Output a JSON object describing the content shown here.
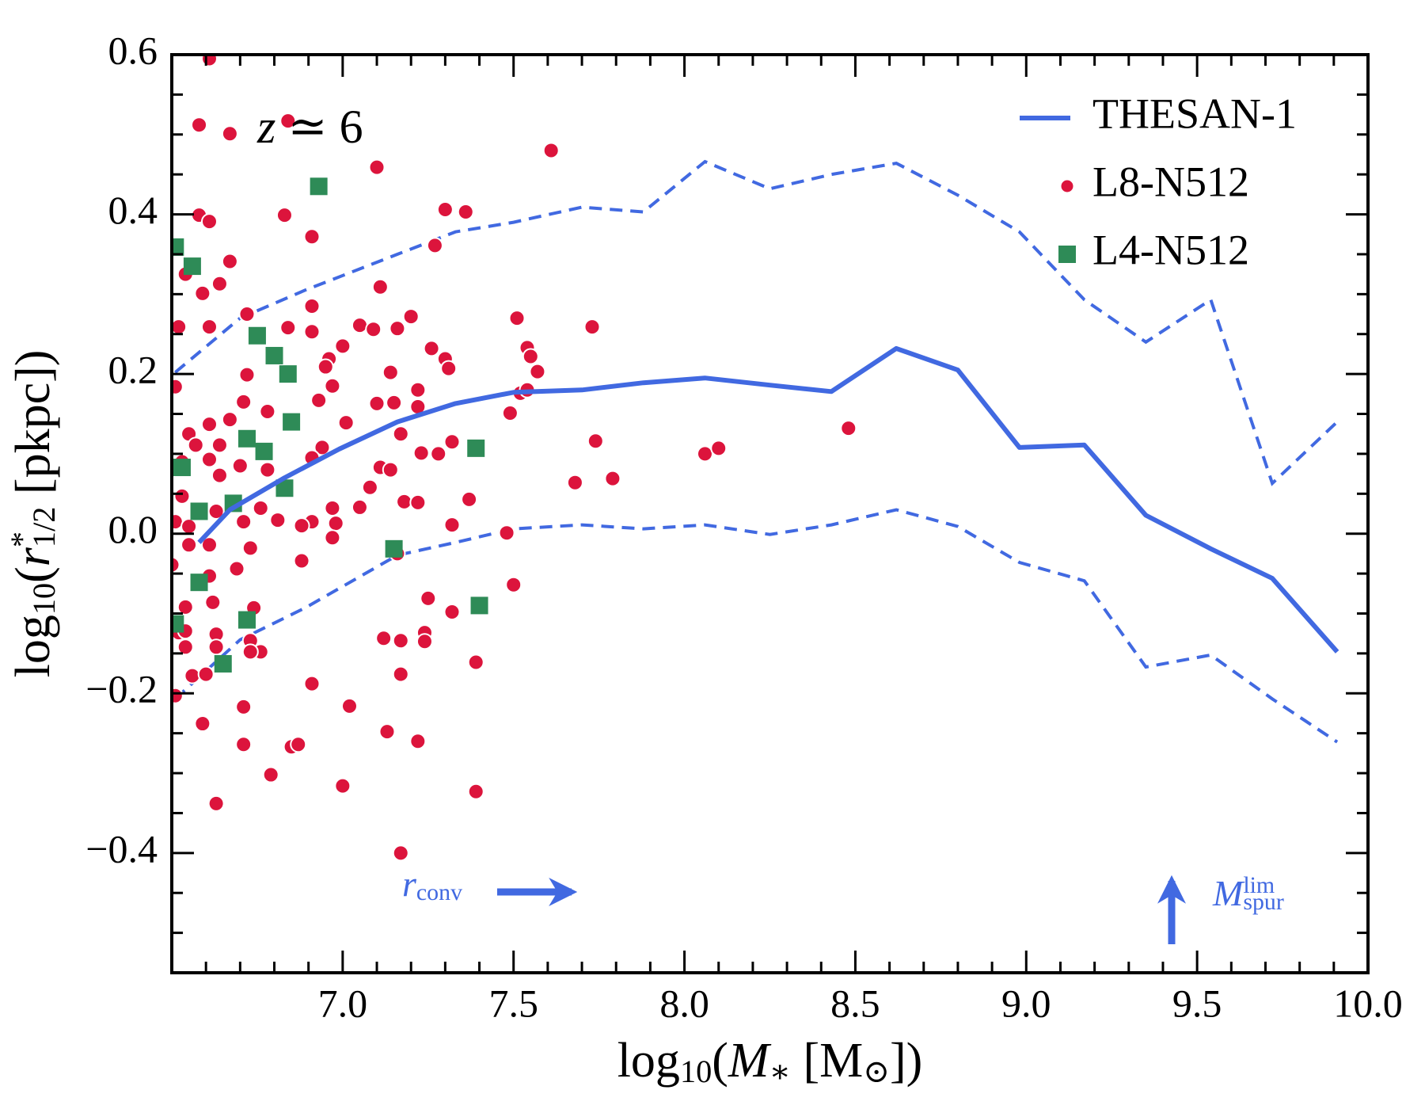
{
  "chart_data": {
    "type": "scatter",
    "annotations": {
      "redshift": [
        {
          "text": "z",
          "style": "italic"
        },
        {
          "text": " ≃ 6"
        }
      ],
      "rconv": [
        {
          "text": "r",
          "style": "italic"
        },
        {
          "text": "conv",
          "shift": "sub"
        }
      ],
      "mspur": [
        {
          "text": "M",
          "style": "italic"
        },
        {
          "text": "lim",
          "shift": "sup"
        },
        {
          "text": "spur",
          "shift": "sub"
        }
      ]
    },
    "xlabel": [
      {
        "text": "log"
      },
      {
        "text": "10",
        "shift": "sub"
      },
      {
        "text": "("
      },
      {
        "text": "M",
        "style": "italic"
      },
      {
        "text": "∗",
        "shift": "sub"
      },
      {
        "text": " [M"
      },
      {
        "text": "⊙",
        "shift": "sub"
      },
      {
        "text": "])"
      }
    ],
    "ylabel": [
      {
        "text": "log"
      },
      {
        "text": "10",
        "shift": "sub"
      },
      {
        "text": "("
      },
      {
        "text": "r",
        "style": "italic"
      },
      {
        "text": "*",
        "shift": "sup"
      },
      {
        "text": "1/2",
        "shift": "sub"
      },
      {
        "text": " [pkpc])"
      }
    ],
    "xlim": [
      6.5,
      10.0
    ],
    "ylim": [
      -0.55,
      0.6
    ],
    "xticks": [
      {
        "value": 7.0,
        "label": "7.0"
      },
      {
        "value": 7.5,
        "label": "7.5"
      },
      {
        "value": 8.0,
        "label": "8.0"
      },
      {
        "value": 8.5,
        "label": "8.5"
      },
      {
        "value": 9.0,
        "label": "9.0"
      },
      {
        "value": 9.5,
        "label": "9.5"
      },
      {
        "value": 10.0,
        "label": "10.0"
      }
    ],
    "yticks": [
      {
        "value": -0.4,
        "label": "−0.4"
      },
      {
        "value": -0.2,
        "label": "−0.2"
      },
      {
        "value": 0.0,
        "label": "0.0"
      },
      {
        "value": 0.2,
        "label": "0.2"
      },
      {
        "value": 0.4,
        "label": "0.4"
      },
      {
        "value": 0.6,
        "label": "0.6"
      }
    ],
    "xminor": [
      6.6,
      6.7,
      6.8,
      6.9,
      7.1,
      7.2,
      7.3,
      7.4,
      7.6,
      7.7,
      7.8,
      7.9,
      8.1,
      8.2,
      8.3,
      8.4,
      8.6,
      8.7,
      8.8,
      8.9,
      9.1,
      9.2,
      9.3,
      9.4,
      9.6,
      9.7,
      9.8,
      9.9
    ],
    "yminor": [
      -0.5,
      -0.45,
      -0.35,
      -0.3,
      -0.25,
      -0.15,
      -0.1,
      -0.05,
      0.05,
      0.1,
      0.15,
      0.25,
      0.3,
      0.35,
      0.45,
      0.5,
      0.55
    ],
    "legend": "upper right",
    "percentile_lines": [
      {
        "color": "#4169e1",
        "x": [
          6.51,
          6.7,
          6.89,
          7.16,
          7.33,
          7.5,
          7.7,
          7.88,
          8.06,
          8.25,
          8.43,
          8.62,
          8.8,
          8.98,
          9.17,
          9.35,
          9.54,
          9.72,
          9.91
        ],
        "values": [
          0.202,
          0.27,
          0.305,
          0.35,
          0.378,
          0.39,
          0.409,
          0.403,
          0.466,
          0.432,
          0.45,
          0.464,
          0.424,
          0.378,
          0.293,
          0.24,
          0.293,
          0.063,
          0.14
        ]
      },
      {
        "color": "#4169e1",
        "x": [
          6.51,
          6.7,
          6.89,
          7.16,
          7.33,
          7.5,
          7.7,
          7.88,
          8.06,
          8.25,
          8.43,
          8.62,
          8.8,
          8.98,
          9.17,
          9.35,
          9.54,
          9.72,
          9.91
        ],
        "values": [
          -0.207,
          -0.133,
          -0.093,
          -0.027,
          -0.011,
          0.006,
          0.011,
          0.006,
          0.011,
          -0.001,
          0.011,
          0.03,
          0.009,
          -0.036,
          -0.059,
          -0.167,
          -0.152,
          -0.207,
          -0.261
        ]
      }
    ],
    "series": [
      {
        "name": "THESAN-1",
        "marker": "line",
        "color": "#4169e1",
        "x": [
          6.58,
          6.67,
          6.83,
          6.99,
          7.16,
          7.33,
          7.5,
          7.7,
          7.88,
          8.06,
          8.25,
          8.43,
          8.62,
          8.8,
          8.98,
          9.17,
          9.35,
          9.54,
          9.72,
          9.91
        ],
        "values": [
          -0.011,
          0.03,
          0.07,
          0.106,
          0.14,
          0.163,
          0.177,
          0.18,
          0.189,
          0.195,
          0.186,
          0.178,
          0.232,
          0.205,
          0.108,
          0.111,
          0.023,
          -0.019,
          -0.056,
          -0.148
        ]
      },
      {
        "name": "L8-N512",
        "marker": "circle",
        "color": "#dc143c",
        "x": [
          6.61,
          6.58,
          6.67,
          6.84,
          7.61,
          7.1,
          6.58,
          6.61,
          6.83,
          7.3,
          7.36,
          6.91,
          7.27,
          6.67,
          6.54,
          6.64,
          6.59,
          7.11,
          6.72,
          6.91,
          7.2,
          7.51,
          6.52,
          6.84,
          6.91,
          7.05,
          7.09,
          7.16,
          7.73,
          6.61,
          7.0,
          7.26,
          6.96,
          6.95,
          7.3,
          7.31,
          7.54,
          7.55,
          7.57,
          7.14,
          6.72,
          6.51,
          6.97,
          7.22,
          6.93,
          7.15,
          7.22,
          7.52,
          7.54,
          7.49,
          7.1,
          6.78,
          6.71,
          6.67,
          7.01,
          7.17,
          6.55,
          6.61,
          7.32,
          7.74,
          6.57,
          6.64,
          6.94,
          7.23,
          7.28,
          8.06,
          8.1,
          8.48,
          6.61,
          6.91,
          6.53,
          6.7,
          6.78,
          7.11,
          7.14,
          6.64,
          7.79,
          7.68,
          7.08,
          7.18,
          7.37,
          7.22,
          6.97,
          7.05,
          6.53,
          6.63,
          6.76,
          6.71,
          6.81,
          6.51,
          6.91,
          6.98,
          6.88,
          7.32,
          7.48,
          6.55,
          6.97,
          6.55,
          6.61,
          6.73,
          6.88,
          6.5,
          7.16,
          6.61,
          6.69,
          7.5,
          7.25,
          6.54,
          6.62,
          6.74,
          6.52,
          6.63,
          7.24,
          7.32,
          6.54,
          6.73,
          7.12,
          7.17,
          7.24,
          6.54,
          6.76,
          6.63,
          6.73,
          6.56,
          6.6,
          7.17,
          7.39,
          6.51,
          6.91,
          6.59,
          6.71,
          7.02,
          7.13,
          7.22,
          6.71,
          6.85,
          6.87,
          6.79,
          7.0,
          7.39,
          6.63,
          7.17
        ],
        "values": [
          0.595,
          0.512,
          0.501,
          0.517,
          0.48,
          0.459,
          0.399,
          0.391,
          0.399,
          0.406,
          0.403,
          0.372,
          0.361,
          0.341,
          0.325,
          0.313,
          0.301,
          0.309,
          0.275,
          0.285,
          0.272,
          0.27,
          0.259,
          0.258,
          0.253,
          0.261,
          0.256,
          0.257,
          0.259,
          0.259,
          0.235,
          0.232,
          0.219,
          0.209,
          0.219,
          0.207,
          0.233,
          0.222,
          0.203,
          0.202,
          0.199,
          0.184,
          0.185,
          0.18,
          0.167,
          0.164,
          0.159,
          0.176,
          0.18,
          0.151,
          0.163,
          0.153,
          0.165,
          0.143,
          0.139,
          0.125,
          0.125,
          0.137,
          0.115,
          0.116,
          0.111,
          0.111,
          0.108,
          0.101,
          0.1,
          0.1,
          0.107,
          0.132,
          0.093,
          0.095,
          0.09,
          0.085,
          0.08,
          0.083,
          0.08,
          0.073,
          0.069,
          0.064,
          0.058,
          0.04,
          0.043,
          0.039,
          0.032,
          0.033,
          0.047,
          0.028,
          0.032,
          0.015,
          0.017,
          0.015,
          0.015,
          0.013,
          0.01,
          0.011,
          0.001,
          0.009,
          -0.005,
          -0.014,
          -0.014,
          -0.018,
          -0.034,
          -0.039,
          -0.025,
          -0.053,
          -0.044,
          -0.064,
          -0.081,
          -0.092,
          -0.086,
          -0.093,
          -0.124,
          -0.126,
          -0.124,
          -0.098,
          -0.122,
          -0.134,
          -0.131,
          -0.134,
          -0.135,
          -0.142,
          -0.148,
          -0.142,
          -0.148,
          -0.178,
          -0.176,
          -0.176,
          -0.161,
          -0.203,
          -0.188,
          -0.238,
          -0.217,
          -0.216,
          -0.248,
          -0.26,
          -0.264,
          -0.267,
          -0.264,
          -0.302,
          -0.316,
          -0.323,
          -0.338,
          -0.4
        ]
      },
      {
        "name": "L4-N512",
        "marker": "square",
        "color": "#2e8b57",
        "x": [
          6.51,
          6.56,
          6.93,
          6.75,
          6.8,
          6.84,
          6.85,
          6.53,
          6.72,
          6.77,
          6.83,
          6.68,
          6.58,
          7.39,
          7.15,
          6.58,
          7.4,
          6.72,
          6.65,
          6.51
        ],
        "values": [
          0.359,
          0.335,
          0.435,
          0.248,
          0.223,
          0.2,
          0.14,
          0.083,
          0.119,
          0.103,
          0.057,
          0.038,
          0.028,
          0.107,
          -0.019,
          -0.061,
          -0.09,
          -0.108,
          -0.163,
          -0.113
        ]
      }
    ]
  }
}
